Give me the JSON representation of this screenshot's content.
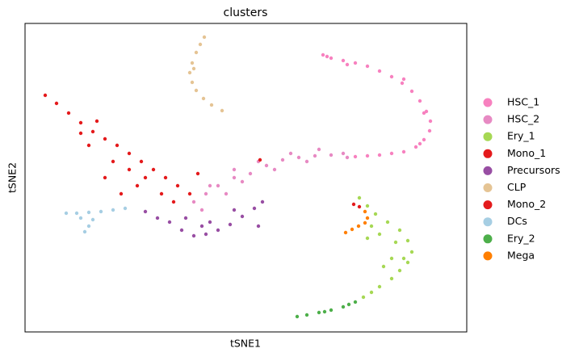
{
  "chart_data": {
    "type": "scatter",
    "title": "clusters",
    "x_label": "tSNE1",
    "y_label": "tSNE2",
    "xlim": [
      0,
      547
    ],
    "ylim": [
      0,
      382
    ],
    "legend": "right",
    "series": [
      {
        "name": "HSC_1",
        "color": "#f781bf",
        "x": [
          369,
          379,
          394,
          409,
          424,
          439,
          454,
          467,
          479,
          489,
          497,
          502,
          501,
          494,
          484,
          469,
          454,
          439,
          424,
          409,
          374,
          399,
          469,
          494,
          489
        ],
        "y": [
          343,
          339,
          336,
          333,
          329,
          323,
          316,
          308,
          298,
          286,
          273,
          261,
          249,
          238,
          229,
          223,
          221,
          219,
          218,
          217,
          341,
          331,
          313,
          271,
          233
        ]
      },
      {
        "name": "HSC_2",
        "color": "#e78ac3",
        "x": [
          209,
          224,
          239,
          259,
          279,
          299,
          319,
          339,
          359,
          379,
          394,
          269,
          249,
          229,
          309,
          329,
          349,
          219,
          259,
          289,
          364,
          399
        ],
        "y": [
          161,
          171,
          181,
          191,
          196,
          206,
          213,
          216,
          218,
          219,
          221,
          186,
          171,
          181,
          201,
          221,
          211,
          151,
          201,
          211,
          226,
          216
        ]
      },
      {
        "name": "Ery_1",
        "color": "#a6d854",
        "x": [
          414,
          424,
          434,
          449,
          464,
          474,
          479,
          474,
          464,
          454,
          439,
          429,
          419,
          439,
          459,
          469,
          429,
          444,
          454,
          424
        ],
        "y": [
          166,
          156,
          146,
          136,
          126,
          113,
          99,
          86,
          76,
          66,
          56,
          49,
          43,
          121,
          111,
          91,
          131,
          81,
          91,
          116
        ]
      },
      {
        "name": "Mono_1",
        "color": "#e41a1c",
        "x": [
          25,
          39,
          54,
          69,
          84,
          99,
          114,
          129,
          144,
          159,
          174,
          189,
          204,
          79,
          99,
          119,
          139,
          169,
          109,
          89,
          184,
          149,
          129,
          69,
          214
        ],
        "y": [
          293,
          283,
          271,
          259,
          248,
          239,
          231,
          221,
          211,
          201,
          191,
          181,
          171,
          231,
          191,
          171,
          181,
          171,
          211,
          261,
          161,
          191,
          201,
          246,
          196
        ]
      },
      {
        "name": "Precursors",
        "color": "#984ea3",
        "x": [
          164,
          179,
          194,
          209,
          224,
          239,
          254,
          269,
          284,
          294,
          199,
          229,
          149,
          219,
          259,
          289
        ],
        "y": [
          141,
          136,
          126,
          119,
          121,
          126,
          133,
          143,
          153,
          161,
          141,
          136,
          149,
          131,
          151,
          131
        ]
      },
      {
        "name": "CLP",
        "color": "#e5c494",
        "x": [
          222,
          217,
          212,
          207,
          204,
          207,
          212,
          221,
          231,
          244,
          209
        ],
        "y": [
          365,
          356,
          346,
          333,
          321,
          309,
          299,
          289,
          281,
          274,
          326
        ]
      },
      {
        "name": "Mono_2",
        "color": "#e31a1c",
        "x": [
          291,
          407,
          414
        ],
        "y": [
          213,
          158,
          155
        ]
      },
      {
        "name": "DCs",
        "color": "#a6cee3",
        "x": [
          51,
          64,
          79,
          94,
          109,
          124,
          74,
          79,
          84,
          69
        ],
        "y": [
          147,
          147,
          148,
          149,
          151,
          153,
          124,
          131,
          139,
          141
        ]
      },
      {
        "name": "Ery_2",
        "color": "#4daf4a",
        "x": [
          409,
          394,
          379,
          364,
          349,
          337,
          401,
          371
        ],
        "y": [
          37,
          31,
          27,
          24,
          21,
          19,
          34,
          25
        ]
      },
      {
        "name": "Mega",
        "color": "#ff7f00",
        "x": [
          397,
          405,
          413,
          421,
          421,
          424
        ],
        "y": [
          123,
          127,
          131,
          135,
          149,
          141
        ]
      }
    ]
  }
}
